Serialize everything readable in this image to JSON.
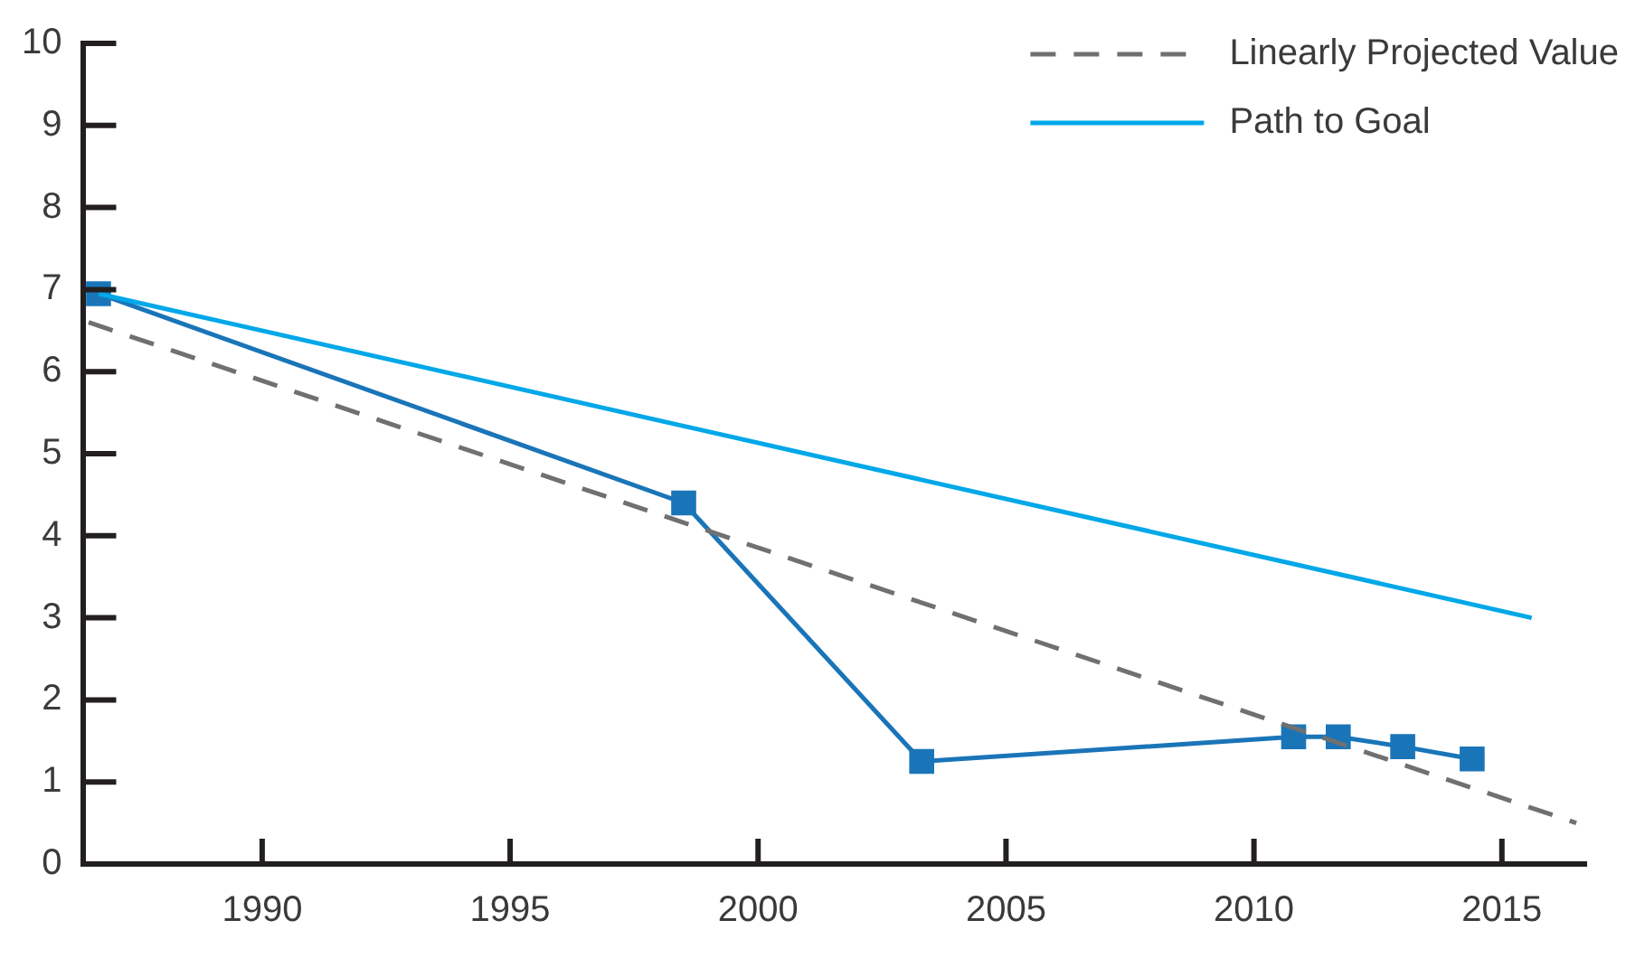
{
  "chart_data": {
    "type": "line",
    "x": [
      1986.7,
      1998.5,
      2003.3,
      2010.8,
      2011.7,
      2013,
      2014.4
    ],
    "series": [
      {
        "name": "Linearly Projected Value",
        "color": "#707070",
        "x": [
          1986.5,
          2016.5
        ],
        "values": [
          6.6,
          0.5
        ],
        "line_style": "dashed",
        "marker": "none"
      },
      {
        "name": "Path to Goal",
        "color": "#00a8e8",
        "x": [
          1986.7,
          2015.6
        ],
        "values": [
          6.95,
          3.0
        ],
        "line_style": "solid",
        "marker": "none"
      },
      {
        "color": "#1a75b8",
        "values": [
          6.95,
          4.4,
          1.25,
          1.55,
          1.55,
          1.43,
          1.28
        ],
        "line_style": "solid",
        "marker": "square"
      }
    ],
    "xlim": [
      1986.4,
      2016.7
    ],
    "xticks": [
      1990,
      1995,
      2000,
      2005,
      2010,
      2015
    ],
    "ylim": [
      0,
      10
    ],
    "yticks": [
      0,
      1,
      2,
      3,
      4,
      5,
      6,
      7,
      8,
      9,
      10
    ],
    "grid": false,
    "legend": "top right"
  }
}
